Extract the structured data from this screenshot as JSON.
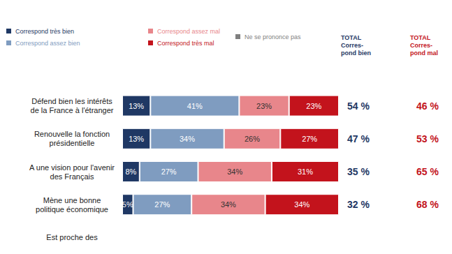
{
  "chart_data": {
    "type": "bar",
    "orientation": "horizontal",
    "stacked": true,
    "data_labels": true,
    "tick_labels": false,
    "grid": false,
    "legend": "top-left",
    "categories": [
      "Défend bien les intérêts\nde la France à l'étranger",
      "Renouvelle la fonction\nprésidentielle",
      "A une vision pour l'avenir\ndes Français",
      "Mène une bonne\npolitique économique",
      "Est proche des"
    ],
    "xlim": [
      0,
      100
    ],
    "series": [
      {
        "name": "Correspond très bien",
        "color": "#1f3864",
        "values": [
          13,
          13,
          8,
          5,
          null
        ],
        "value_labels": [
          "13%",
          "13%",
          "8%",
          "5%",
          null
        ]
      },
      {
        "name": "Correspond assez bien",
        "color": "#7f9cc0",
        "values": [
          41,
          34,
          27,
          27,
          null
        ],
        "value_labels": [
          "41%",
          "34%",
          "27%",
          "27%",
          null
        ]
      },
      {
        "name": "Correspond assez mal",
        "color": "#e8868b",
        "values": [
          23,
          26,
          34,
          34,
          null
        ],
        "value_labels": [
          "23%",
          "26%",
          "34%",
          "34%",
          null
        ]
      },
      {
        "name": "Correspond très mal",
        "color": "#c3131c",
        "values": [
          23,
          27,
          31,
          34,
          null
        ],
        "value_labels": [
          "23%",
          "27%",
          "31%",
          "34%",
          null
        ]
      },
      {
        "name": "Ne se prononce pas",
        "color": "#7f7f7f",
        "values": [
          null,
          null,
          null,
          null,
          null
        ]
      }
    ],
    "totals": [
      {
        "header": [
          "TOTAL",
          "Corres-",
          "pond bien"
        ],
        "color": "#1f3864",
        "values": [
          54,
          47,
          35,
          32,
          null
        ],
        "value_labels": [
          "54 %",
          "47 %",
          "35 %",
          "32 %",
          null
        ]
      },
      {
        "header": [
          "TOTAL",
          "Corres-",
          "pond mal"
        ],
        "color": "#c3131c",
        "values": [
          46,
          53,
          65,
          68,
          null
        ],
        "value_labels": [
          "46 %",
          "53 %",
          "65 %",
          "68 %",
          null
        ]
      }
    ]
  }
}
